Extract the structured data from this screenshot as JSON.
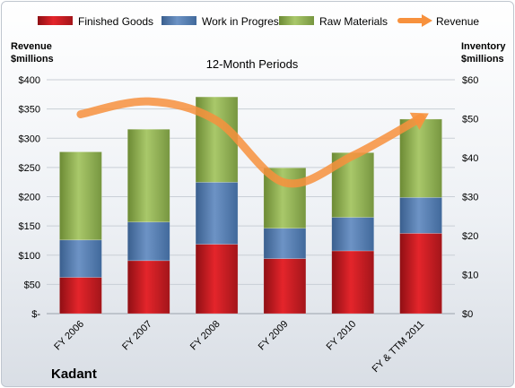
{
  "chart_data": {
    "type": "bar",
    "stacked": true,
    "title": "12-Month Periods",
    "company": "Kadant",
    "categories": [
      "FY 2006",
      "FY 2007",
      "FY 2008",
      "FY 2009",
      "FY 2010",
      "FY & TTM 2011"
    ],
    "series": [
      {
        "name": "Finished Goods",
        "axis": "right",
        "color": "#e81e25",
        "values": [
          9.3,
          13.6,
          17.8,
          14.1,
          16.1,
          20.6
        ]
      },
      {
        "name": "Work in Progress",
        "axis": "right",
        "color": "#4f81bd",
        "values": [
          9.6,
          9.9,
          15.9,
          7.8,
          8.6,
          9.2
        ]
      },
      {
        "name": "Raw Materials",
        "axis": "right",
        "color": "#9bbb59",
        "values": [
          22.6,
          23.8,
          21.9,
          15.5,
          16.6,
          20.1
        ]
      },
      {
        "name": "Revenue",
        "type": "line",
        "axis": "left",
        "color": "#f7913d",
        "values": [
          341,
          363,
          330,
          224,
          270,
          335
        ]
      }
    ],
    "y_left": {
      "label_lines": [
        "Revenue",
        "$millions"
      ],
      "range": [
        0,
        400
      ],
      "ticks": [
        "$-",
        "$50",
        "$100",
        "$150",
        "$200",
        "$250",
        "$300",
        "$350",
        "$400"
      ]
    },
    "y_right": {
      "label_lines": [
        "Inventory",
        "$millions"
      ],
      "range": [
        0,
        60
      ],
      "ticks": [
        "$0",
        "$10",
        "$20",
        "$30",
        "$40",
        "$50",
        "$60"
      ]
    },
    "grid": true,
    "legend_position": "top"
  }
}
